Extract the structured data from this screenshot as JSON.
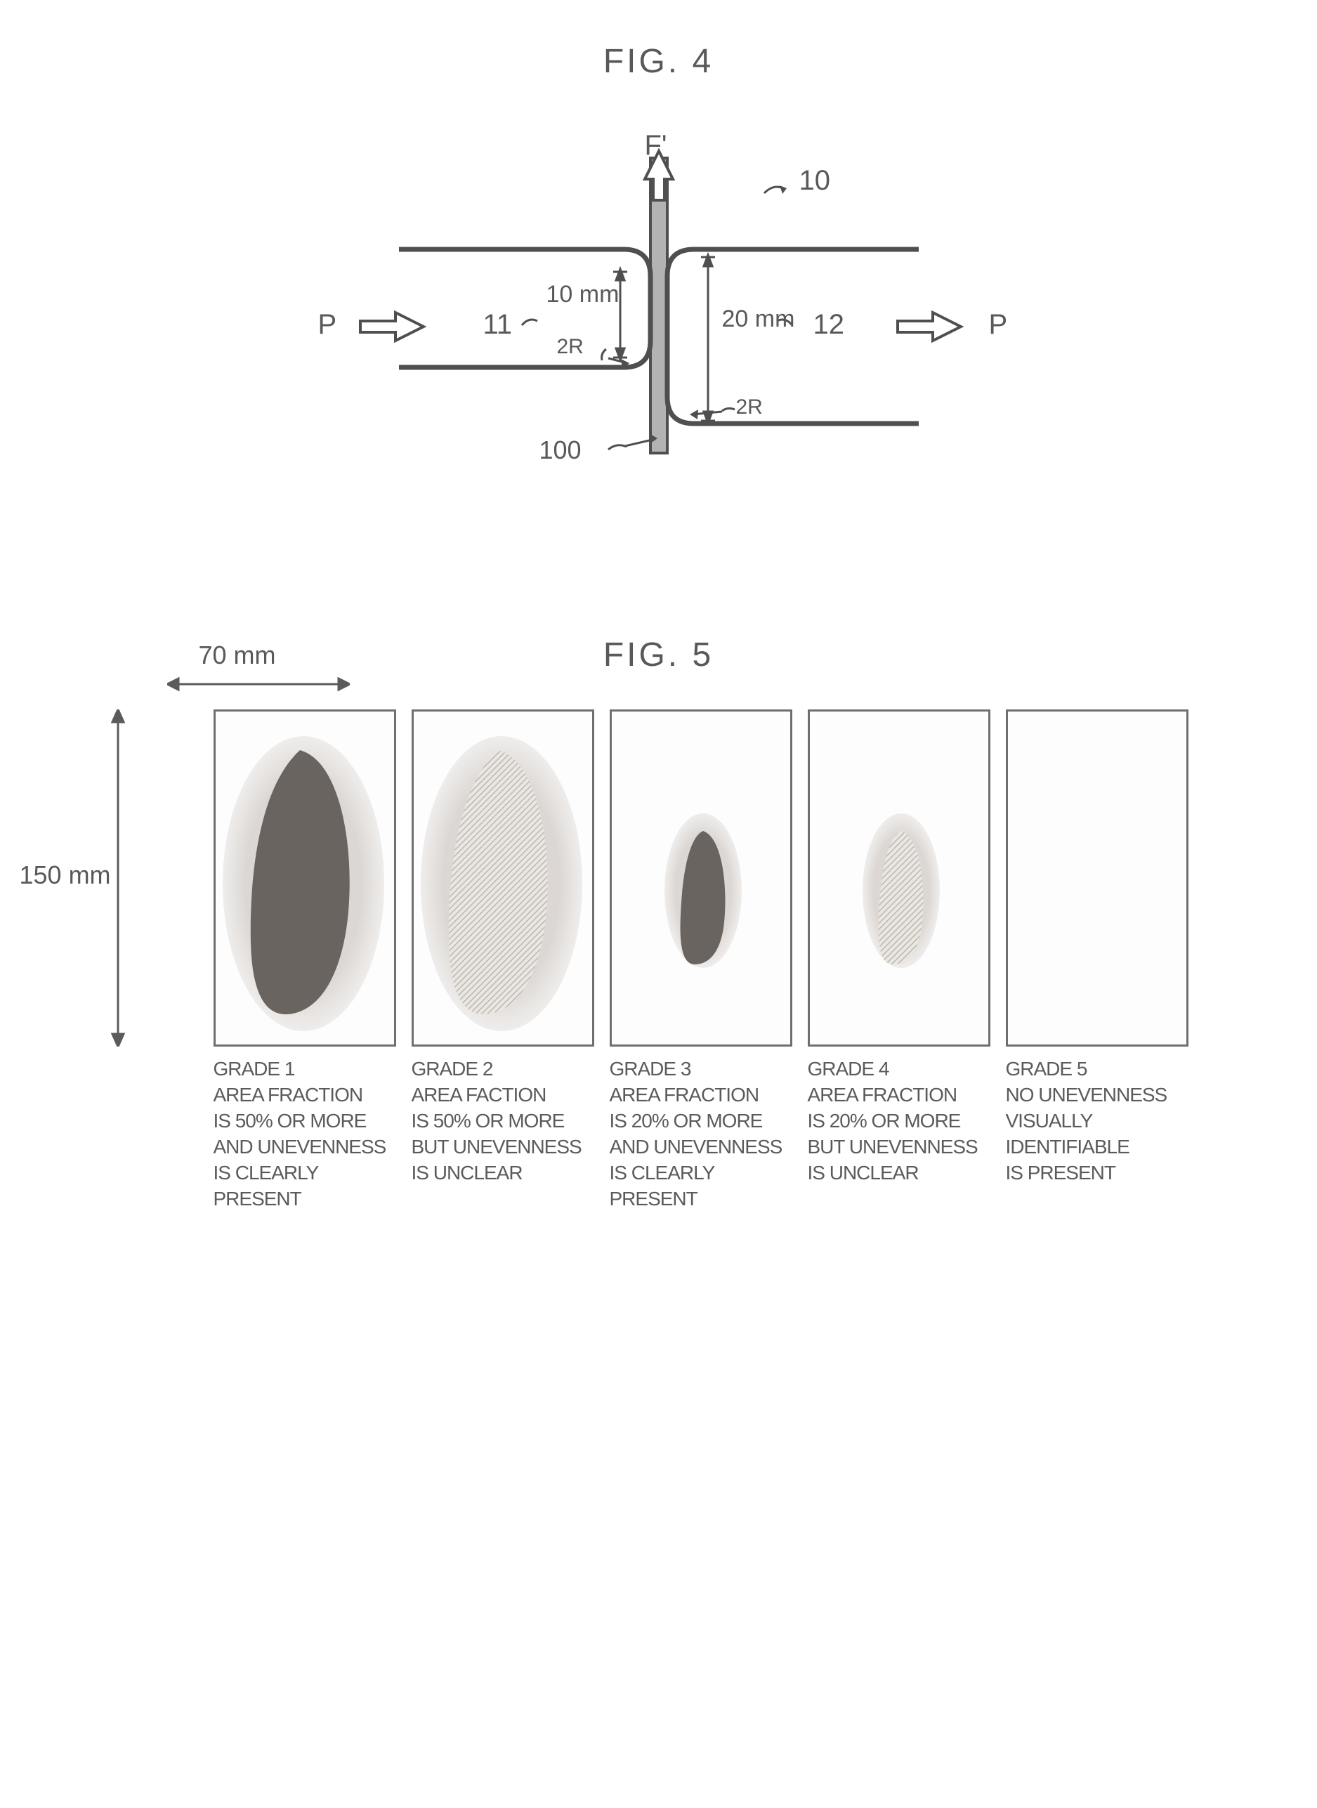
{
  "fig4": {
    "title": "FIG. 4",
    "labels": {
      "F": "F'",
      "ref10": "10",
      "P_left": "P",
      "P_right": "P",
      "ref11": "11",
      "ref12": "12",
      "ref100": "100",
      "dim10": "10 mm",
      "dim20": "20 mm",
      "r_left": "2R",
      "r_right": "2R"
    },
    "colors": {
      "line": "#4f4f4f",
      "fill_center": "#b3b3b3",
      "arrow_fill": "#ffffff",
      "arrow_stroke": "#4f4f4f"
    },
    "stroke_width": 5
  },
  "fig5": {
    "title": "FIG. 5",
    "dim_w": "70 mm",
    "dim_h": "150 mm",
    "panel_border": "#6f6f6f",
    "halo_color": "#d8d3cf",
    "blob_dark": "#6a6460",
    "blob_light_pattern": "#bdb7b0",
    "grades": [
      {
        "title": "GRADE 1",
        "lines": [
          "AREA FRACTION",
          "IS 50% OR  MORE",
          "AND UNEVENNESS",
          "IS CLEARLY",
          "PRESENT"
        ],
        "blob": {
          "type": "dark_large",
          "halo": true
        }
      },
      {
        "title": "GRADE 2",
        "lines": [
          "AREA FACTION",
          "IS 50% OR MORE",
          "BUT UNEVENNESS",
          "IS UNCLEAR"
        ],
        "blob": {
          "type": "light_large",
          "halo": true
        }
      },
      {
        "title": "GRADE 3",
        "lines": [
          "AREA FRACTION",
          "IS 20% OR MORE",
          "AND UNEVENNESS",
          "IS CLEARLY",
          "PRESENT"
        ],
        "blob": {
          "type": "dark_small",
          "halo": true
        }
      },
      {
        "title": "GRADE 4",
        "lines": [
          "AREA FRACTION",
          "IS 20% OR MORE",
          "BUT UNEVENNESS",
          "IS UNCLEAR"
        ],
        "blob": {
          "type": "light_small",
          "halo": true
        }
      },
      {
        "title": "GRADE 5",
        "lines": [
          "NO UNEVENNESS",
          "VISUALLY",
          "IDENTIFIABLE",
          "IS PRESENT"
        ],
        "blob": {
          "type": "none",
          "halo": false
        }
      }
    ]
  }
}
